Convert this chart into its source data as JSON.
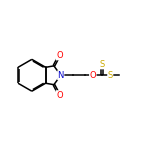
{
  "bg_color": "#ffffff",
  "line_color": "#000000",
  "atom_colors": {
    "O": "#ff0000",
    "N": "#0000cc",
    "S": "#ccaa00",
    "C": "#000000"
  },
  "figsize": [
    1.52,
    1.52
  ],
  "dpi": 100,
  "lw": 1.1,
  "dbl_off": 0.055,
  "font_size": 6.0
}
